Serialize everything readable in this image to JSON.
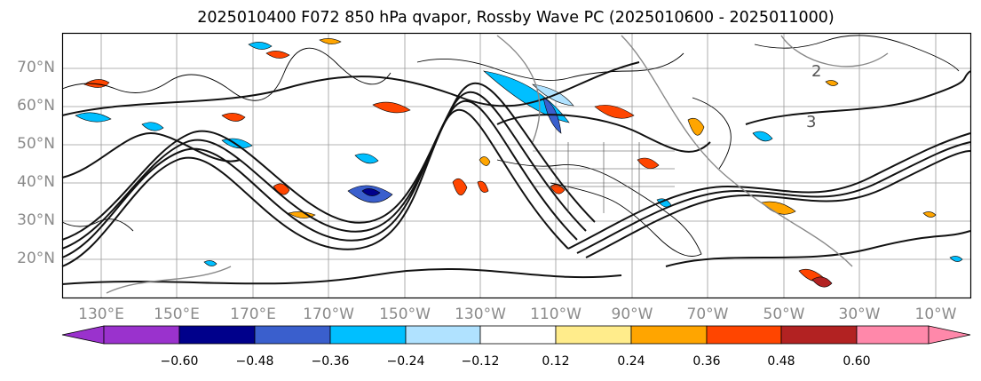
{
  "title": "2025010400 F072 850 hPa qvapor, Rossby Wave PC (2025010600 - 2025011000)",
  "lat_labels": [
    "70°N",
    "60°N",
    "50°N",
    "40°N",
    "30°N",
    "20°N"
  ],
  "lon_labels": [
    "130°E",
    "150°E",
    "170°E",
    "170°W",
    "150°W",
    "130°W",
    "110°W",
    "90°W",
    "70°W",
    "50°W",
    "30°W",
    "10°W"
  ],
  "contour_labels": [
    "2",
    "3"
  ],
  "colorbar": {
    "ticks": [
      "−0.60",
      "−0.48",
      "−0.36",
      "−0.24",
      "−0.12",
      "0.12",
      "0.24",
      "0.36",
      "0.48",
      "0.60"
    ],
    "colors": [
      "#9a32cd",
      "#00008b",
      "#3a5fcd",
      "#00bfff",
      "#b0e2ff",
      "#ffffff",
      "#ffec8b",
      "#ffa500",
      "#ff4500",
      "#b22222",
      "#ff88aa"
    ]
  }
}
